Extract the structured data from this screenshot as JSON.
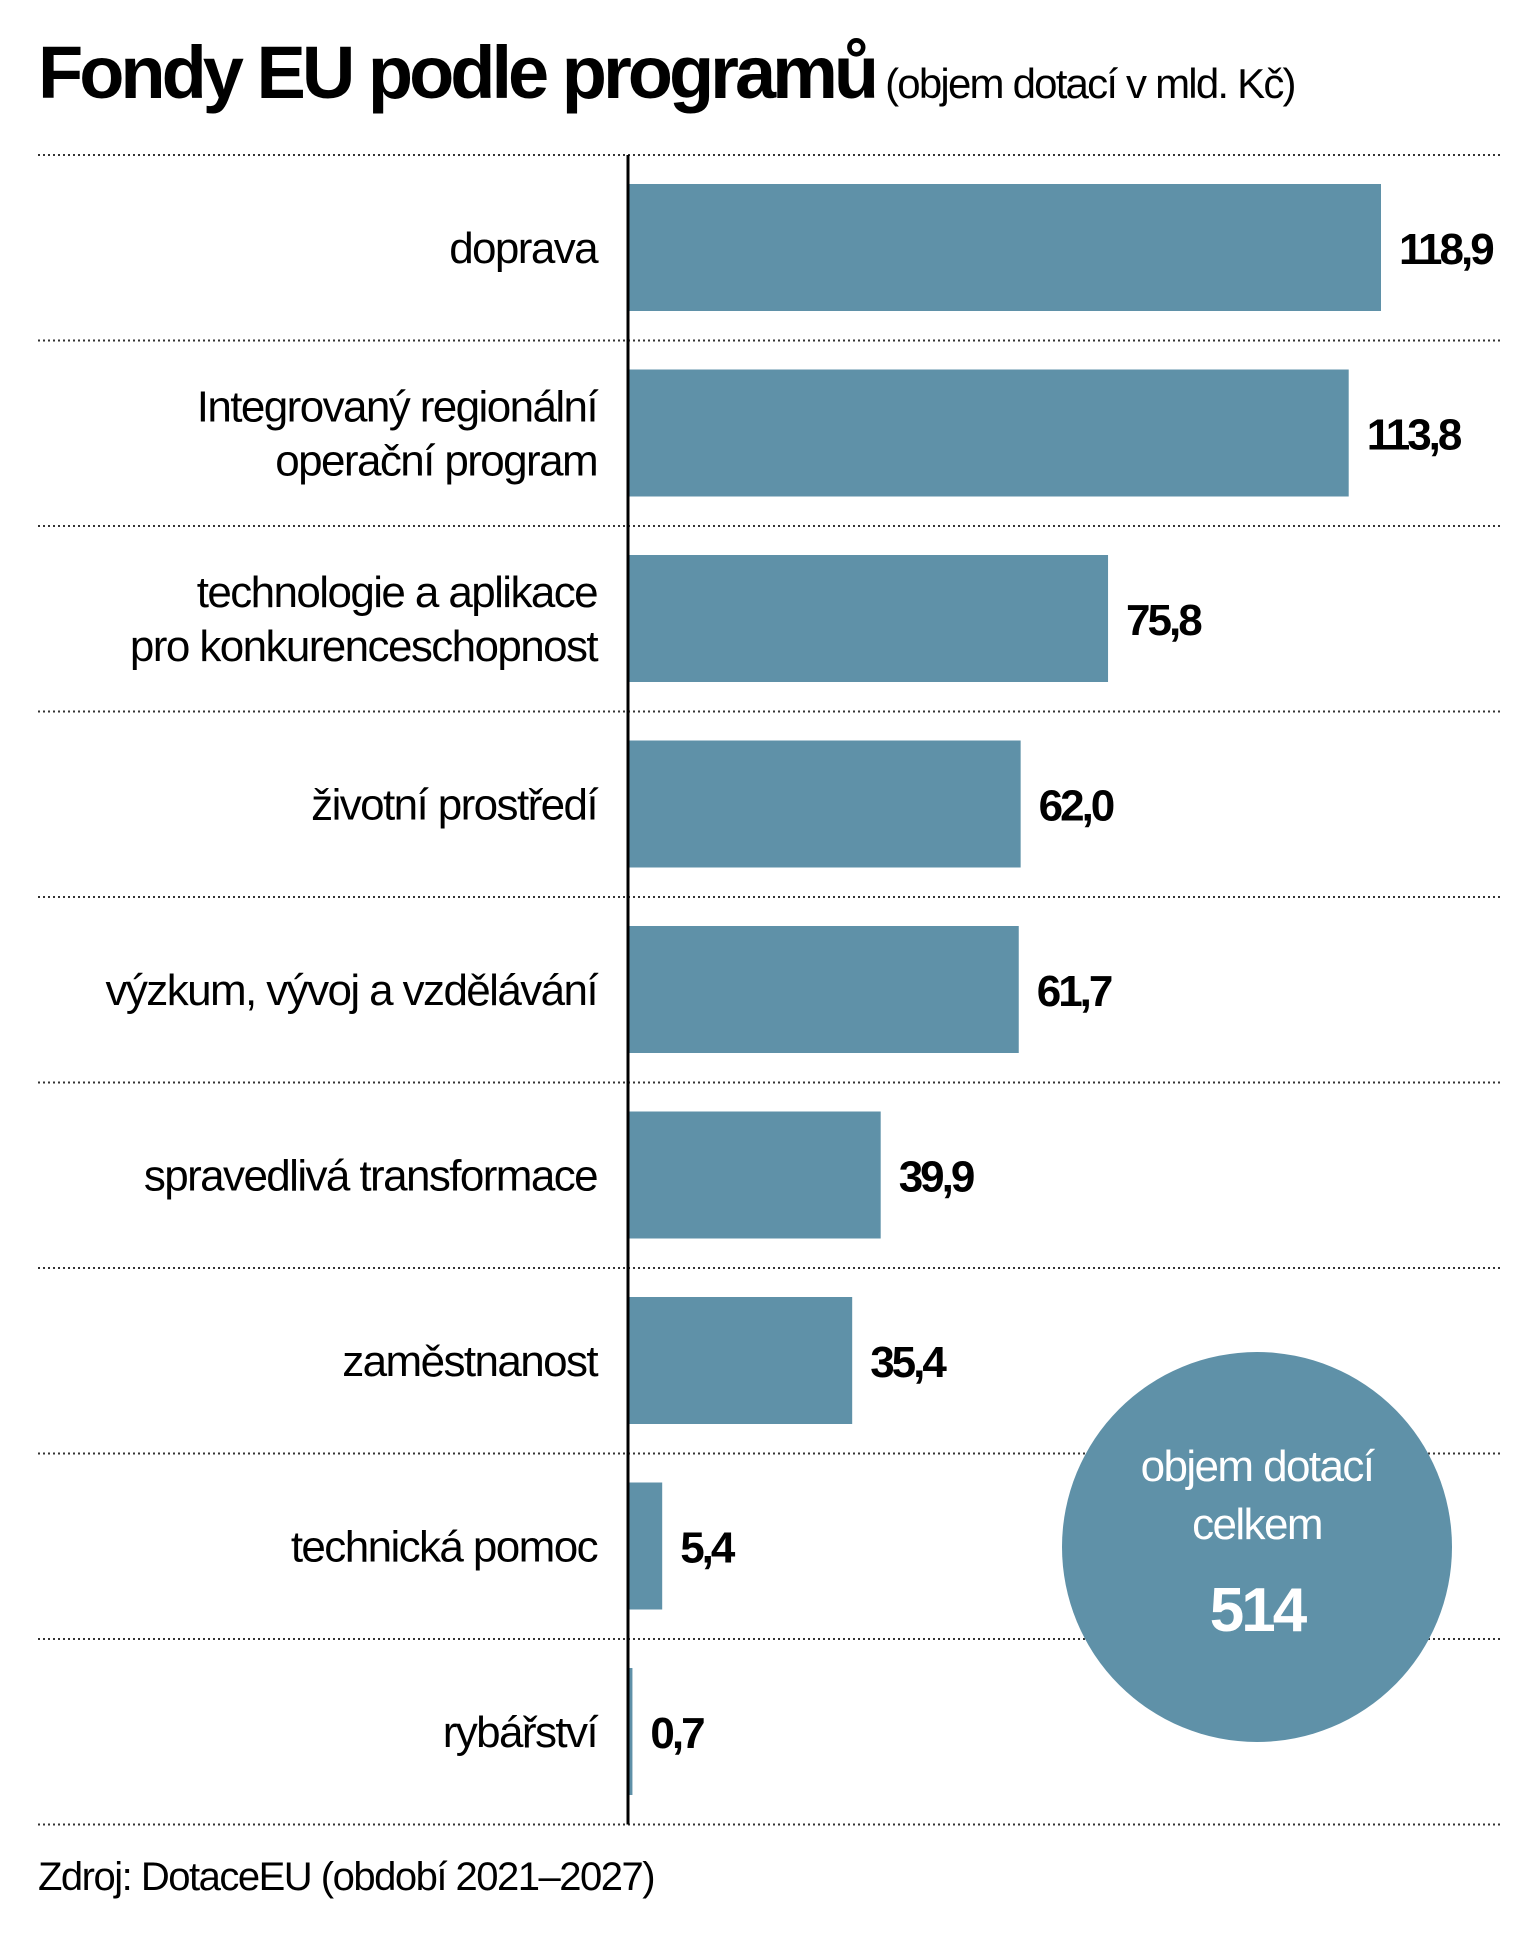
{
  "title": "Fondy EU podle programů",
  "subtitle": "(objem dotací v mld. Kč)",
  "source": "Zdroj: DotaceEU (období 2021–2027)",
  "total": {
    "label_line1": "objem dotací",
    "label_line2": "celkem",
    "value": "514"
  },
  "colors": {
    "bar": "#5f91a8",
    "circle": "#5f91a8"
  },
  "chart_data": {
    "type": "bar",
    "orientation": "horizontal",
    "title": "Fondy EU podle programů",
    "subtitle": "(objem dotací v mld. Kč)",
    "categories": [
      [
        "doprava"
      ],
      [
        "Integrovaný regionální",
        "operační program"
      ],
      [
        "technologie a aplikace",
        "pro konkurenceschopnost"
      ],
      [
        "životní prostředí"
      ],
      [
        "výzkum, vývoj a vzdělávání"
      ],
      [
        "spravedlivá transformace"
      ],
      [
        "zaměstnanost"
      ],
      [
        "technická pomoc"
      ],
      [
        "rybářství"
      ]
    ],
    "values": [
      118.9,
      113.8,
      75.8,
      62.0,
      61.7,
      39.9,
      35.4,
      5.4,
      0.7
    ],
    "value_labels": [
      "118,9",
      "113,8",
      "75,8",
      "62,0",
      "61,7",
      "39,9",
      "35,4",
      "5,4",
      "0,7"
    ],
    "xlim": [
      0,
      118.9
    ],
    "grid": "dotted row separators"
  }
}
